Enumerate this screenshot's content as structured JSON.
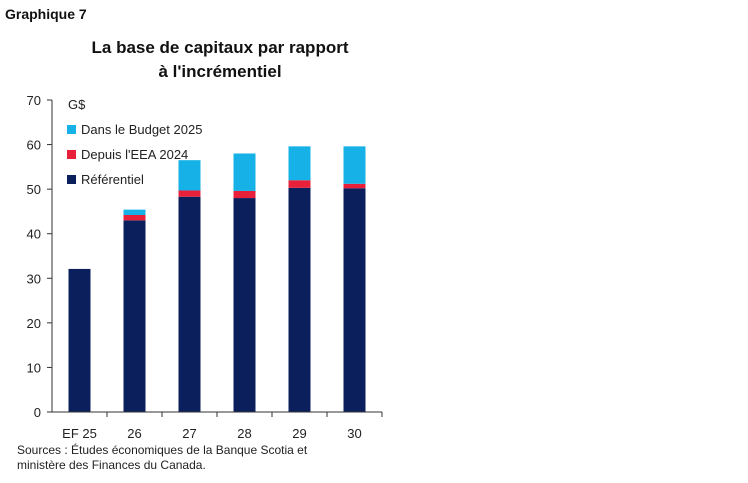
{
  "figure_label": "Graphique 7",
  "title_lines": [
    "La base de capitaux par rapport",
    "à l'incrémentiel"
  ],
  "sources_lines": [
    "Sources : Études économiques de la Banque Scotia et",
    "ministère des Finances du Canada."
  ],
  "chart_data": {
    "type": "bar",
    "stacked": true,
    "title": "La base de capitaux par rapport à l'incrémentiel",
    "unit_label": "G$",
    "categories": [
      "EF 25",
      "26",
      "27",
      "28",
      "29",
      "30"
    ],
    "series": [
      {
        "name": "Référentiel",
        "color": "#0b1f5c",
        "values": [
          32.1,
          43.0,
          48.3,
          48.0,
          50.3,
          50.2
        ]
      },
      {
        "name": "Depuis l'EEA 2024",
        "color": "#e8203a",
        "values": [
          0,
          1.2,
          1.4,
          1.6,
          1.7,
          1.0
        ]
      },
      {
        "name": "Dans le Budget 2025",
        "color": "#16b1e6",
        "values": [
          0,
          1.2,
          6.8,
          8.4,
          7.6,
          8.4
        ]
      }
    ],
    "legend_order": [
      "Dans le Budget 2025",
      "Depuis l'EEA 2024",
      "Référentiel"
    ],
    "legend_position": "top-left",
    "ylim": [
      0,
      70
    ],
    "yticks": [
      0,
      10,
      20,
      30,
      40,
      50,
      60,
      70
    ],
    "grid": false
  }
}
